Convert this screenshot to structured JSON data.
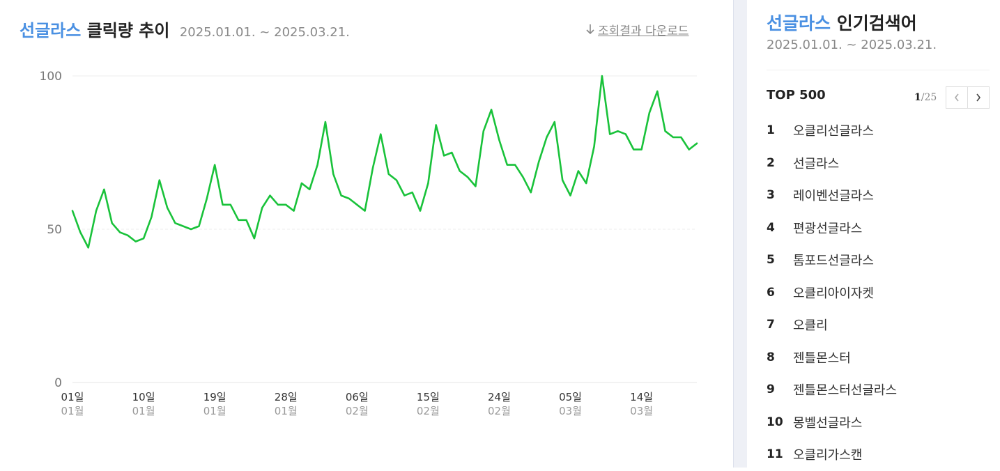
{
  "header": {
    "keyword": "선글라스",
    "title_suffix": "클릭량 추이",
    "date_range": "2025.01.01. ~ 2025.03.21.",
    "download_label": "조회결과 다운로드"
  },
  "chart_data": {
    "type": "line",
    "title": "선글라스 클릭량 추이",
    "color": "#19c23a",
    "ylim": [
      0,
      100
    ],
    "yticks": [
      0,
      50,
      100
    ],
    "x_range": [
      "2025-01-01",
      "2025-03-21"
    ],
    "x_ticks": [
      {
        "day": "01일",
        "month": "01월",
        "date": "2025-01-01"
      },
      {
        "day": "10일",
        "month": "01월",
        "date": "2025-01-10"
      },
      {
        "day": "19일",
        "month": "01월",
        "date": "2025-01-19"
      },
      {
        "day": "28일",
        "month": "01월",
        "date": "2025-01-28"
      },
      {
        "day": "06일",
        "month": "02월",
        "date": "2025-02-06"
      },
      {
        "day": "15일",
        "month": "02월",
        "date": "2025-02-15"
      },
      {
        "day": "24일",
        "month": "02월",
        "date": "2025-02-24"
      },
      {
        "day": "05일",
        "month": "03월",
        "date": "2025-03-05"
      },
      {
        "day": "14일",
        "month": "03월",
        "date": "2025-03-14"
      }
    ],
    "series": [
      {
        "values": [
          56,
          49,
          44,
          56,
          63,
          52,
          49,
          48,
          46,
          47,
          54,
          66,
          57,
          52,
          51,
          50,
          51,
          60,
          71,
          58,
          58,
          53,
          53,
          47,
          57,
          61,
          58,
          58,
          56,
          65,
          63,
          71,
          85,
          68,
          61,
          60,
          58,
          56,
          70,
          81,
          68,
          66,
          61,
          62,
          56,
          65,
          84,
          74,
          75,
          69,
          67,
          64,
          82,
          89,
          79,
          71,
          71,
          67,
          62,
          72,
          80,
          85,
          66,
          61,
          69,
          65,
          77,
          100,
          81,
          82,
          81,
          76,
          76,
          88,
          95,
          82,
          80,
          80,
          76,
          78
        ]
      }
    ]
  },
  "sidebar": {
    "keyword": "선글라스",
    "title_suffix": "인기검색어",
    "date_range": "2025.01.01. ~ 2025.03.21.",
    "top_label": "TOP 500",
    "page_current": "1",
    "page_total": "/25",
    "ranks": [
      {
        "no": "1",
        "name": "오클리선글라스"
      },
      {
        "no": "2",
        "name": "선글라스"
      },
      {
        "no": "3",
        "name": "레이벤선글라스"
      },
      {
        "no": "4",
        "name": "편광선글라스"
      },
      {
        "no": "5",
        "name": "톰포드선글라스"
      },
      {
        "no": "6",
        "name": "오클리아이자켓"
      },
      {
        "no": "7",
        "name": "오클리"
      },
      {
        "no": "8",
        "name": "젠틀몬스터"
      },
      {
        "no": "9",
        "name": "젠틀몬스터선글라스"
      },
      {
        "no": "10",
        "name": "몽벨선글라스"
      },
      {
        "no": "11",
        "name": "오클리가스캔"
      }
    ]
  }
}
